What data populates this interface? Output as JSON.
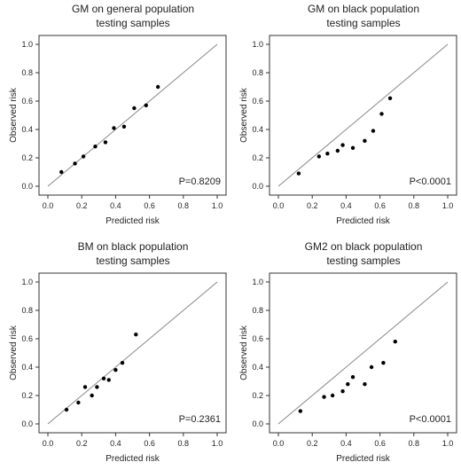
{
  "chart_data": [
    {
      "type": "scatter",
      "title": "GM  on general population\ntesting samples",
      "xlabel": "Predicted risk",
      "ylabel": "Observed risk",
      "xlim": [
        0.0,
        1.0
      ],
      "ylim": [
        0.0,
        1.0
      ],
      "ticks": [
        "0.0",
        "0.2",
        "0.4",
        "0.6",
        "0.8",
        "1.0"
      ],
      "reference_line": "y = x",
      "p_value_label": "P=0.8209",
      "points": [
        {
          "x": 0.08,
          "y": 0.1
        },
        {
          "x": 0.16,
          "y": 0.16
        },
        {
          "x": 0.21,
          "y": 0.21
        },
        {
          "x": 0.28,
          "y": 0.28
        },
        {
          "x": 0.34,
          "y": 0.31
        },
        {
          "x": 0.39,
          "y": 0.41
        },
        {
          "x": 0.45,
          "y": 0.42
        },
        {
          "x": 0.51,
          "y": 0.55
        },
        {
          "x": 0.58,
          "y": 0.57
        },
        {
          "x": 0.65,
          "y": 0.7
        }
      ]
    },
    {
      "type": "scatter",
      "title": "GM  on black population\ntesting samples",
      "xlabel": "Predicted risk",
      "ylabel": "Observed risk",
      "xlim": [
        0.0,
        1.0
      ],
      "ylim": [
        0.0,
        1.0
      ],
      "ticks": [
        "0.0",
        "0.2",
        "0.4",
        "0.6",
        "0.8",
        "1.0"
      ],
      "reference_line": "y = x",
      "p_value_label": "P<0.0001",
      "points": [
        {
          "x": 0.12,
          "y": 0.09
        },
        {
          "x": 0.24,
          "y": 0.21
        },
        {
          "x": 0.29,
          "y": 0.23
        },
        {
          "x": 0.35,
          "y": 0.25
        },
        {
          "x": 0.38,
          "y": 0.29
        },
        {
          "x": 0.44,
          "y": 0.27
        },
        {
          "x": 0.51,
          "y": 0.32
        },
        {
          "x": 0.56,
          "y": 0.39
        },
        {
          "x": 0.61,
          "y": 0.51
        },
        {
          "x": 0.66,
          "y": 0.62
        }
      ]
    },
    {
      "type": "scatter",
      "title": "BM  on black population\ntesting samples",
      "xlabel": "Predicted risk",
      "ylabel": "Observed risk",
      "xlim": [
        0.0,
        1.0
      ],
      "ylim": [
        0.0,
        1.0
      ],
      "ticks": [
        "0.0",
        "0.2",
        "0.4",
        "0.6",
        "0.8",
        "1.0"
      ],
      "reference_line": "y = x",
      "p_value_label": "P=0.2361",
      "points": [
        {
          "x": 0.11,
          "y": 0.1
        },
        {
          "x": 0.18,
          "y": 0.15
        },
        {
          "x": 0.22,
          "y": 0.26
        },
        {
          "x": 0.26,
          "y": 0.2
        },
        {
          "x": 0.29,
          "y": 0.26
        },
        {
          "x": 0.33,
          "y": 0.32
        },
        {
          "x": 0.36,
          "y": 0.31
        },
        {
          "x": 0.4,
          "y": 0.38
        },
        {
          "x": 0.44,
          "y": 0.43
        },
        {
          "x": 0.52,
          "y": 0.63
        }
      ]
    },
    {
      "type": "scatter",
      "title": "GM2  on black population\ntesting samples",
      "xlabel": "Predicted risk",
      "ylabel": "Observed risk",
      "xlim": [
        0.0,
        1.0
      ],
      "ylim": [
        0.0,
        1.0
      ],
      "ticks": [
        "0.0",
        "0.2",
        "0.4",
        "0.6",
        "0.8",
        "1.0"
      ],
      "reference_line": "y = x",
      "p_value_label": "P<0.0001",
      "points": [
        {
          "x": 0.13,
          "y": 0.09
        },
        {
          "x": 0.27,
          "y": 0.19
        },
        {
          "x": 0.32,
          "y": 0.2
        },
        {
          "x": 0.38,
          "y": 0.23
        },
        {
          "x": 0.41,
          "y": 0.28
        },
        {
          "x": 0.44,
          "y": 0.33
        },
        {
          "x": 0.51,
          "y": 0.28
        },
        {
          "x": 0.55,
          "y": 0.4
        },
        {
          "x": 0.62,
          "y": 0.43
        },
        {
          "x": 0.69,
          "y": 0.58
        }
      ]
    }
  ]
}
